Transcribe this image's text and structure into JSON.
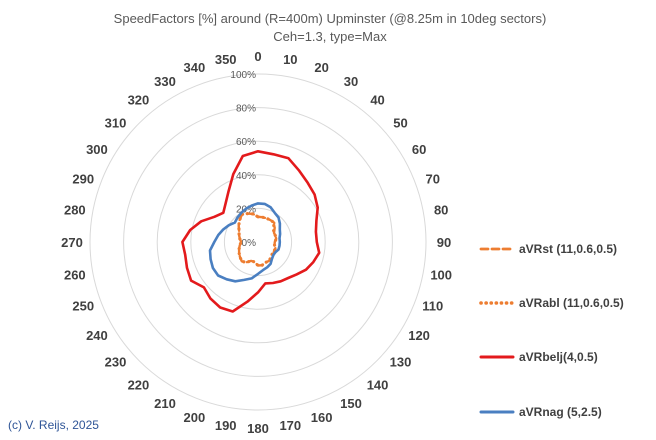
{
  "chart_data": {
    "type": "radar",
    "title": "SpeedFactors [%] around (R=400m) Upminster (@8.25m in 10deg sectors)",
    "subtitle": "Ceh=1.3, type=Max",
    "credit": "(c) V. Reijs, 2025",
    "rlim": [
      0,
      100
    ],
    "radial_ticks": [
      0,
      20,
      40,
      60,
      80,
      100
    ],
    "radial_tick_labels": [
      "0%",
      "20%",
      "40%",
      "60%",
      "80%",
      "100%"
    ],
    "categories": [
      "0",
      "10",
      "20",
      "30",
      "40",
      "50",
      "60",
      "70",
      "80",
      "90",
      "100",
      "110",
      "120",
      "130",
      "140",
      "150",
      "160",
      "170",
      "180",
      "190",
      "200",
      "210",
      "220",
      "230",
      "240",
      "250",
      "260",
      "270",
      "280",
      "290",
      "300",
      "310",
      "320",
      "330",
      "340",
      "350"
    ],
    "series": [
      {
        "name": "aVRst (11,0.6,0.5)",
        "color": "#ed7d31",
        "style": "dashed",
        "values": [
          15,
          15,
          15,
          15,
          15,
          13,
          11,
          11,
          11,
          10,
          10,
          11,
          11,
          12,
          13,
          13,
          13,
          14,
          14,
          12,
          12,
          14,
          15,
          14,
          13,
          12,
          11,
          10,
          11,
          12,
          13,
          15,
          17,
          19,
          18,
          17
        ]
      },
      {
        "name": "aVRabl (11,0.6,0.5)",
        "color": "#ed7d31",
        "style": "dotted",
        "values": [
          15,
          15,
          15,
          15,
          15,
          12,
          11,
          11,
          11,
          10,
          10,
          11,
          11,
          11,
          12,
          13,
          13,
          14,
          14,
          12,
          12,
          14,
          15,
          14,
          13,
          12,
          11,
          10,
          11,
          12,
          13,
          15,
          17,
          19,
          18,
          17
        ]
      },
      {
        "name": "aVRbelj(4,0.5)",
        "color": "#e31a1c",
        "style": "solid",
        "values": [
          54,
          53,
          53,
          49,
          46,
          44,
          41,
          37,
          35,
          35,
          37,
          35,
          33,
          30,
          28,
          27,
          26,
          25,
          30,
          36,
          44,
          45,
          44,
          42,
          46,
          45,
          44,
          45,
          41,
          36,
          30,
          27,
          30,
          35,
          43,
          52
        ]
      },
      {
        "name": "aVRnag (5,2.5)",
        "color": "#4a7fc1",
        "style": "solid",
        "values": [
          23,
          23,
          22,
          20,
          19,
          17,
          15,
          14,
          13,
          13,
          13,
          13,
          12,
          12,
          13,
          15,
          16,
          17,
          19,
          22,
          24,
          27,
          29,
          31,
          31,
          30,
          29,
          26,
          24,
          22,
          20,
          18,
          19,
          20,
          21,
          22
        ]
      }
    ]
  }
}
